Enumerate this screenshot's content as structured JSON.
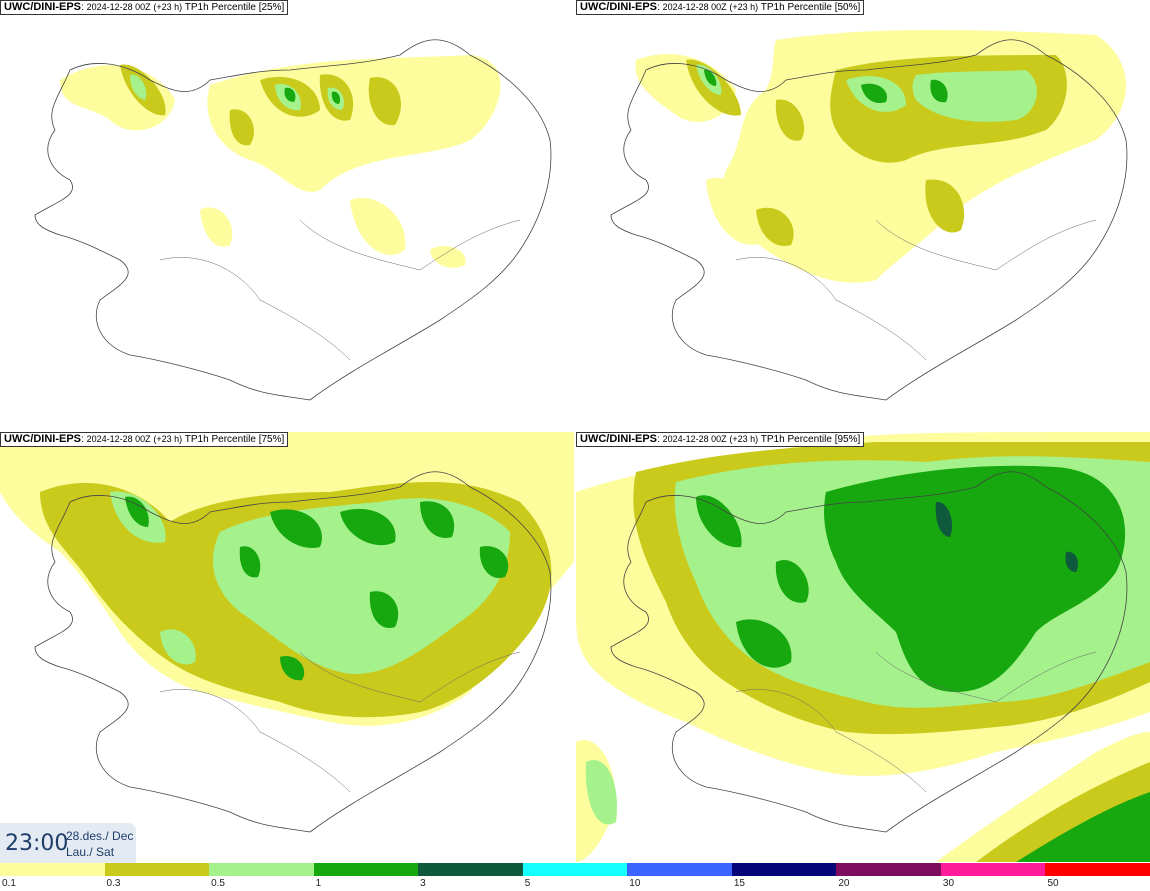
{
  "panels": [
    {
      "model": "UWC/DINI-EPS",
      "run": "2024-12-28 00Z",
      "lead": "(+23 h)",
      "label": "TP1h Percentile [25%]"
    },
    {
      "model": "UWC/DINI-EPS",
      "run": "2024-12-28 00Z",
      "lead": "(+23 h)",
      "label": "TP1h Percentile [50%]"
    },
    {
      "model": "UWC/DINI-EPS",
      "run": "2024-12-28 00Z",
      "lead": "(+23 h)",
      "label": "TP1h Percentile [75%]"
    },
    {
      "model": "UWC/DINI-EPS",
      "run": "2024-12-28 00Z",
      "lead": "(+23 h)",
      "label": "TP1h Percentile [95%]"
    }
  ],
  "time_box": {
    "time": "23:00",
    "date": "28.des./ Dec",
    "day": "Lau./ Sat"
  },
  "legend": {
    "thresholds": [
      "0.1",
      "0.3",
      "0.5",
      "1",
      "3",
      "5",
      "10",
      "15",
      "20",
      "30",
      "50"
    ],
    "colors": [
      "#fdfd9d",
      "#caca1d",
      "#a5f28d",
      "#16a80e",
      "#0f5a3c",
      "#16ffff",
      "#3a63ff",
      "#05057a",
      "#7d0c5e",
      "#ff1a9a",
      "#ff0000"
    ]
  },
  "colors": {
    "level1": "#fdfd9d",
    "level2": "#caca1d",
    "level3": "#a5f28d",
    "level4": "#16a80e",
    "level5": "#0f5a3c",
    "coast": "#444444"
  }
}
